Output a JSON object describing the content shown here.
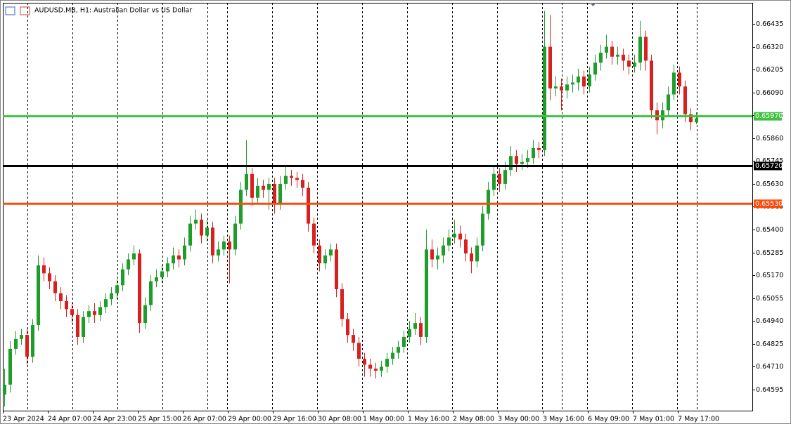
{
  "chart_data": {
    "type": "candlestick",
    "title": "AUDUSD.MB, H1:  Australian Dollar vs US Dollar",
    "up_color": "#1f9d2a",
    "down_color": "#d8211f",
    "grid": true,
    "open": [
      0.6457,
      0.6462,
      0.648,
      0.6485,
      0.6487,
      0.6476,
      0.6492,
      0.6522,
      0.6518,
      0.6514,
      0.6508,
      0.6504,
      0.65,
      0.6497,
      0.6486,
      0.6496,
      0.6499,
      0.6497,
      0.6501,
      0.6505,
      0.6508,
      0.6512,
      0.652,
      0.6525,
      0.6528,
      0.6493,
      0.6502,
      0.6514,
      0.6516,
      0.6519,
      0.6523,
      0.6527,
      0.6525,
      0.6532,
      0.6543,
      0.6545,
      0.6537,
      0.6541,
      0.6527,
      0.653,
      0.6534,
      0.653,
      0.6543,
      0.656,
      0.6568,
      0.6556,
      0.6562,
      0.656,
      0.6563,
      0.6553,
      0.6563,
      0.6567,
      0.6566,
      0.6565,
      0.6561,
      0.6543,
      0.6532,
      0.6523,
      0.6527,
      0.653,
      0.651,
      0.6495,
      0.6487,
      0.6483,
      0.6475,
      0.6472,
      0.647,
      0.6469,
      0.6471,
      0.6475,
      0.6478,
      0.6481,
      0.6486,
      0.649,
      0.6493,
      0.6486,
      0.653,
      0.6525,
      0.6527,
      0.6532,
      0.6536,
      0.6538,
      0.6535,
      0.6528,
      0.6524,
      0.6532,
      0.6548,
      0.656,
      0.6568,
      0.6563,
      0.657,
      0.6577,
      0.6573,
      0.6574,
      0.6576,
      0.6581,
      0.658,
      0.6632,
      0.6611,
      0.6612,
      0.661,
      0.6613,
      0.6614,
      0.6617,
      0.6612,
      0.6618,
      0.6624,
      0.6629,
      0.6632,
      0.6627,
      0.6628,
      0.6625,
      0.6622,
      0.6624,
      0.6637,
      0.6625,
      0.66,
      0.6595,
      0.66,
      0.6608,
      0.6619,
      0.6612,
      0.6598,
      0.6594
    ],
    "high": [
      0.647,
      0.6484,
      0.6489,
      0.649,
      0.649,
      0.6495,
      0.6527,
      0.6526,
      0.6521,
      0.6517,
      0.6511,
      0.6507,
      0.6503,
      0.65,
      0.6499,
      0.6502,
      0.6503,
      0.6504,
      0.6508,
      0.6511,
      0.6515,
      0.6523,
      0.6528,
      0.6532,
      0.653,
      0.6506,
      0.6517,
      0.652,
      0.6522,
      0.6526,
      0.6531,
      0.653,
      0.6536,
      0.6547,
      0.655,
      0.6548,
      0.6545,
      0.6544,
      0.6534,
      0.6537,
      0.6537,
      0.6547,
      0.6564,
      0.6585,
      0.6571,
      0.6566,
      0.6565,
      0.6566,
      0.6566,
      0.6567,
      0.6572,
      0.657,
      0.6569,
      0.6568,
      0.6564,
      0.6546,
      0.6535,
      0.653,
      0.6533,
      0.6533,
      0.6513,
      0.6498,
      0.649,
      0.6486,
      0.6478,
      0.6475,
      0.6473,
      0.6474,
      0.6478,
      0.6481,
      0.6484,
      0.6489,
      0.6494,
      0.6498,
      0.6496,
      0.654,
      0.6535,
      0.6531,
      0.6536,
      0.654,
      0.6545,
      0.6542,
      0.6538,
      0.6531,
      0.6536,
      0.6552,
      0.6564,
      0.6572,
      0.6571,
      0.6574,
      0.6582,
      0.658,
      0.6578,
      0.658,
      0.6585,
      0.6584,
      0.665,
      0.6648,
      0.6617,
      0.6616,
      0.6617,
      0.6618,
      0.6621,
      0.662,
      0.6622,
      0.6628,
      0.6633,
      0.6638,
      0.6635,
      0.6632,
      0.6631,
      0.6628,
      0.6628,
      0.6645,
      0.664,
      0.6628,
      0.6604,
      0.6604,
      0.6612,
      0.6623,
      0.6622,
      0.6615,
      0.6601,
      0.6599
    ],
    "low": [
      0.6451,
      0.6458,
      0.6477,
      0.6482,
      0.6472,
      0.6473,
      0.6489,
      0.6514,
      0.651,
      0.6504,
      0.65,
      0.6496,
      0.6493,
      0.6482,
      0.6483,
      0.6493,
      0.6493,
      0.6494,
      0.6498,
      0.6502,
      0.6505,
      0.6509,
      0.6517,
      0.6522,
      0.6488,
      0.649,
      0.6499,
      0.6511,
      0.6513,
      0.6516,
      0.652,
      0.6521,
      0.6522,
      0.6529,
      0.654,
      0.6533,
      0.6534,
      0.6523,
      0.6524,
      0.6527,
      0.6513,
      0.6527,
      0.654,
      0.6557,
      0.6552,
      0.6553,
      0.6556,
      0.655,
      0.6548,
      0.655,
      0.656,
      0.6562,
      0.6561,
      0.6557,
      0.6539,
      0.6528,
      0.6519,
      0.652,
      0.6524,
      0.6506,
      0.6491,
      0.6483,
      0.6479,
      0.6471,
      0.6466,
      0.6466,
      0.6465,
      0.6466,
      0.6468,
      0.6472,
      0.6475,
      0.6478,
      0.6483,
      0.6487,
      0.6482,
      0.6483,
      0.6521,
      0.652,
      0.6523,
      0.6529,
      0.6533,
      0.6531,
      0.6524,
      0.6518,
      0.6521,
      0.6529,
      0.6545,
      0.6557,
      0.6559,
      0.656,
      0.6567,
      0.6569,
      0.657,
      0.6571,
      0.6573,
      0.6576,
      0.6577,
      0.6605,
      0.6607,
      0.66,
      0.6606,
      0.6609,
      0.661,
      0.6608,
      0.6609,
      0.6615,
      0.662,
      0.6626,
      0.6623,
      0.6623,
      0.662,
      0.6618,
      0.6619,
      0.662,
      0.662,
      0.6596,
      0.6588,
      0.6591,
      0.6597,
      0.6605,
      0.6608,
      0.6594,
      0.659,
      0.6593
    ],
    "close": [
      0.6462,
      0.648,
      0.6485,
      0.6487,
      0.6476,
      0.6492,
      0.6522,
      0.6518,
      0.6514,
      0.6508,
      0.6504,
      0.65,
      0.6497,
      0.6486,
      0.6496,
      0.6499,
      0.6497,
      0.6501,
      0.6505,
      0.6508,
      0.6512,
      0.652,
      0.6525,
      0.6528,
      0.6493,
      0.6502,
      0.6514,
      0.6516,
      0.6519,
      0.6523,
      0.6527,
      0.6525,
      0.6532,
      0.6543,
      0.6545,
      0.6537,
      0.6541,
      0.6527,
      0.653,
      0.6534,
      0.653,
      0.6543,
      0.656,
      0.6568,
      0.6556,
      0.6562,
      0.656,
      0.6563,
      0.6553,
      0.6563,
      0.6567,
      0.6566,
      0.6565,
      0.6561,
      0.6543,
      0.6532,
      0.6523,
      0.6527,
      0.653,
      0.651,
      0.6495,
      0.6487,
      0.6483,
      0.6475,
      0.6472,
      0.647,
      0.6469,
      0.6471,
      0.6475,
      0.6478,
      0.6481,
      0.6486,
      0.649,
      0.6493,
      0.6486,
      0.653,
      0.6525,
      0.6527,
      0.6532,
      0.6536,
      0.6538,
      0.6535,
      0.6528,
      0.6524,
      0.6532,
      0.6548,
      0.656,
      0.6568,
      0.6563,
      0.657,
      0.6577,
      0.6573,
      0.6574,
      0.6576,
      0.6581,
      0.658,
      0.6632,
      0.6611,
      0.6612,
      0.661,
      0.6613,
      0.6614,
      0.6617,
      0.6612,
      0.6618,
      0.6624,
      0.6629,
      0.6632,
      0.6627,
      0.6628,
      0.6625,
      0.6622,
      0.6624,
      0.6637,
      0.6625,
      0.66,
      0.6595,
      0.66,
      0.6608,
      0.6619,
      0.6612,
      0.6598,
      0.6594,
      0.6596
    ],
    "ylim": [
      0.64489,
      0.66541
    ],
    "yticks": [
      {
        "value": 0.66435,
        "label": "0.66435"
      },
      {
        "value": 0.6632,
        "label": "0.66320"
      },
      {
        "value": 0.66205,
        "label": "0.66205"
      },
      {
        "value": 0.6609,
        "label": "0.66090"
      },
      {
        "value": 0.65975,
        "label": "0.65975"
      },
      {
        "value": 0.6586,
        "label": "0.65860"
      },
      {
        "value": 0.65745,
        "label": "0.65745"
      },
      {
        "value": 0.6563,
        "label": "0.65630"
      },
      {
        "value": 0.65515,
        "label": "0.65515"
      },
      {
        "value": 0.654,
        "label": "0.65400"
      },
      {
        "value": 0.65285,
        "label": "0.65285"
      },
      {
        "value": 0.6517,
        "label": "0.65170"
      },
      {
        "value": 0.65055,
        "label": "0.65055"
      },
      {
        "value": 0.6494,
        "label": "0.64940"
      },
      {
        "value": 0.64825,
        "label": "0.64825"
      },
      {
        "value": 0.6471,
        "label": "0.64710"
      },
      {
        "value": 0.64595,
        "label": "0.64595"
      }
    ],
    "xticks": [
      {
        "value": 0,
        "label": "23 Apr 2024"
      },
      {
        "value": 8,
        "label": "24 Apr 07:00"
      },
      {
        "value": 16,
        "label": "24 Apr 23:00"
      },
      {
        "value": 24,
        "label": "25 Apr 15:00"
      },
      {
        "value": 32,
        "label": "26 Apr 07:00"
      },
      {
        "value": 40,
        "label": "29 Apr 00:00"
      },
      {
        "value": 48,
        "label": "29 Apr 16:00"
      },
      {
        "value": 56,
        "label": "30 Apr 08:00"
      },
      {
        "value": 64,
        "label": "1 May 00:00"
      },
      {
        "value": 72,
        "label": "1 May 16:00"
      },
      {
        "value": 80,
        "label": "2 May 08:00"
      },
      {
        "value": 88,
        "label": "3 May 00:00"
      },
      {
        "value": 96,
        "label": "3 May 16:00"
      },
      {
        "value": 104,
        "label": "6 May 09:00"
      },
      {
        "value": 112,
        "label": "7 May 01:00"
      },
      {
        "value": 120,
        "label": "7 May 17:00"
      }
    ],
    "hlines": [
      {
        "value": 0.6597,
        "label": "0.65970",
        "color": "#3cc43c"
      },
      {
        "value": 0.6572,
        "label": "0.65720",
        "color": "#000000"
      },
      {
        "value": 0.6553,
        "label": "0.65530",
        "color": "#ff4a0a"
      }
    ]
  }
}
